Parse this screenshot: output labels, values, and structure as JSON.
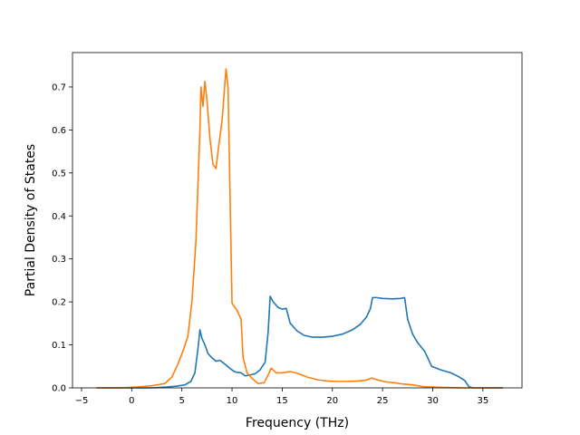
{
  "chart_data": {
    "type": "line",
    "title": "",
    "xlabel": "Frequency (THz)",
    "ylabel": "Partial Density of States",
    "xlim": [
      -5.9,
      38.9
    ],
    "ylim": [
      0.0,
      0.78
    ],
    "x_ticks": [
      -5,
      0,
      5,
      10,
      15,
      20,
      25,
      30,
      35
    ],
    "y_ticks": [
      0.0,
      0.1,
      0.2,
      0.3,
      0.4,
      0.5,
      0.6,
      0.7
    ],
    "x_tick_labels": [
      "−5",
      "0",
      "5",
      "10",
      "15",
      "20",
      "25",
      "30",
      "35"
    ],
    "y_tick_labels": [
      "0.0",
      "0.1",
      "0.2",
      "0.3",
      "0.4",
      "0.5",
      "0.6",
      "0.7"
    ],
    "grid": false,
    "legend": "none",
    "series": [
      {
        "color": "#1f77b4",
        "points": [
          [
            -3.5,
            0.0
          ],
          [
            0.0,
            0.0
          ],
          [
            2.0,
            0.0
          ],
          [
            3.5,
            0.002
          ],
          [
            4.5,
            0.004
          ],
          [
            5.3,
            0.007
          ],
          [
            5.9,
            0.015
          ],
          [
            6.3,
            0.035
          ],
          [
            6.6,
            0.09
          ],
          [
            6.8,
            0.135
          ],
          [
            7.0,
            0.115
          ],
          [
            7.3,
            0.1
          ],
          [
            7.6,
            0.08
          ],
          [
            8.0,
            0.07
          ],
          [
            8.4,
            0.062
          ],
          [
            8.8,
            0.064
          ],
          [
            9.3,
            0.055
          ],
          [
            9.8,
            0.045
          ],
          [
            10.3,
            0.037
          ],
          [
            10.9,
            0.035
          ],
          [
            11.3,
            0.028
          ],
          [
            11.8,
            0.03
          ],
          [
            12.3,
            0.033
          ],
          [
            12.8,
            0.042
          ],
          [
            13.3,
            0.06
          ],
          [
            13.6,
            0.13
          ],
          [
            13.8,
            0.213
          ],
          [
            14.1,
            0.2
          ],
          [
            14.6,
            0.187
          ],
          [
            15.0,
            0.183
          ],
          [
            15.4,
            0.185
          ],
          [
            15.8,
            0.15
          ],
          [
            16.5,
            0.132
          ],
          [
            17.2,
            0.122
          ],
          [
            18.0,
            0.118
          ],
          [
            19.0,
            0.118
          ],
          [
            20.0,
            0.12
          ],
          [
            21.0,
            0.125
          ],
          [
            22.0,
            0.135
          ],
          [
            22.8,
            0.148
          ],
          [
            23.4,
            0.165
          ],
          [
            23.8,
            0.185
          ],
          [
            24.0,
            0.21
          ],
          [
            24.4,
            0.21
          ],
          [
            25.0,
            0.208
          ],
          [
            26.0,
            0.207
          ],
          [
            26.8,
            0.208
          ],
          [
            27.2,
            0.21
          ],
          [
            27.5,
            0.16
          ],
          [
            28.0,
            0.125
          ],
          [
            28.5,
            0.105
          ],
          [
            29.2,
            0.085
          ],
          [
            29.9,
            0.05
          ],
          [
            30.8,
            0.042
          ],
          [
            31.8,
            0.035
          ],
          [
            32.6,
            0.026
          ],
          [
            33.2,
            0.017
          ],
          [
            33.6,
            0.003
          ],
          [
            34.0,
            0.0
          ],
          [
            37.0,
            0.0
          ]
        ]
      },
      {
        "color": "#ff7f0e",
        "points": [
          [
            -3.5,
            0.0
          ],
          [
            -1.0,
            0.0
          ],
          [
            0.5,
            0.002
          ],
          [
            2.0,
            0.005
          ],
          [
            3.3,
            0.01
          ],
          [
            4.0,
            0.025
          ],
          [
            4.6,
            0.055
          ],
          [
            5.1,
            0.085
          ],
          [
            5.6,
            0.12
          ],
          [
            6.0,
            0.2
          ],
          [
            6.4,
            0.34
          ],
          [
            6.8,
            0.6
          ],
          [
            6.9,
            0.7
          ],
          [
            7.1,
            0.655
          ],
          [
            7.3,
            0.713
          ],
          [
            7.5,
            0.67
          ],
          [
            7.8,
            0.58
          ],
          [
            8.1,
            0.52
          ],
          [
            8.4,
            0.51
          ],
          [
            8.6,
            0.55
          ],
          [
            9.0,
            0.62
          ],
          [
            9.4,
            0.742
          ],
          [
            9.6,
            0.7
          ],
          [
            10.0,
            0.197
          ],
          [
            10.5,
            0.18
          ],
          [
            10.9,
            0.16
          ],
          [
            11.1,
            0.07
          ],
          [
            11.5,
            0.035
          ],
          [
            12.0,
            0.022
          ],
          [
            12.6,
            0.01
          ],
          [
            13.2,
            0.012
          ],
          [
            13.6,
            0.03
          ],
          [
            13.9,
            0.046
          ],
          [
            14.4,
            0.035
          ],
          [
            15.0,
            0.035
          ],
          [
            15.8,
            0.038
          ],
          [
            16.5,
            0.034
          ],
          [
            17.5,
            0.025
          ],
          [
            18.5,
            0.019
          ],
          [
            19.5,
            0.016
          ],
          [
            20.5,
            0.015
          ],
          [
            21.5,
            0.015
          ],
          [
            22.5,
            0.016
          ],
          [
            23.4,
            0.018
          ],
          [
            23.9,
            0.023
          ],
          [
            24.6,
            0.018
          ],
          [
            25.3,
            0.014
          ],
          [
            26.2,
            0.012
          ],
          [
            27.0,
            0.009
          ],
          [
            28.0,
            0.007
          ],
          [
            29.0,
            0.003
          ],
          [
            31.0,
            0.001
          ],
          [
            33.0,
            0.0
          ],
          [
            37.0,
            0.0
          ]
        ]
      }
    ]
  }
}
